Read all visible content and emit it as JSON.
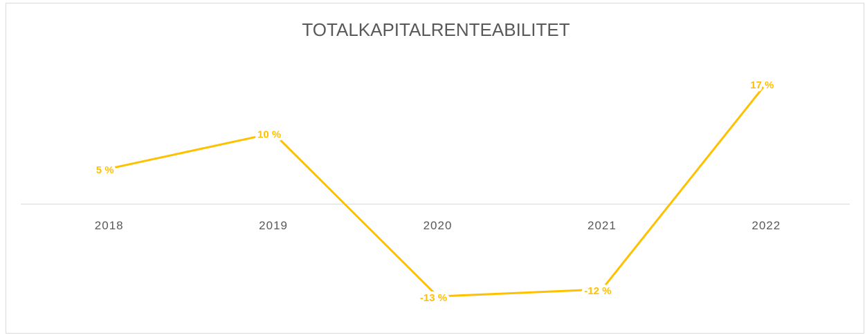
{
  "chart_data": {
    "type": "line",
    "title": "TOTALKAPITALRENTEABILITET",
    "categories": [
      "2018",
      "2019",
      "2020",
      "2021",
      "2022"
    ],
    "series": [
      {
        "color": "#FFC000",
        "values": [
          5,
          10,
          -13,
          -12,
          17
        ],
        "value_labels": [
          "5 %",
          "10 %",
          "-13 %",
          "-12 %",
          "17 %"
        ]
      }
    ],
    "ylim": [
      -16,
      20
    ]
  }
}
